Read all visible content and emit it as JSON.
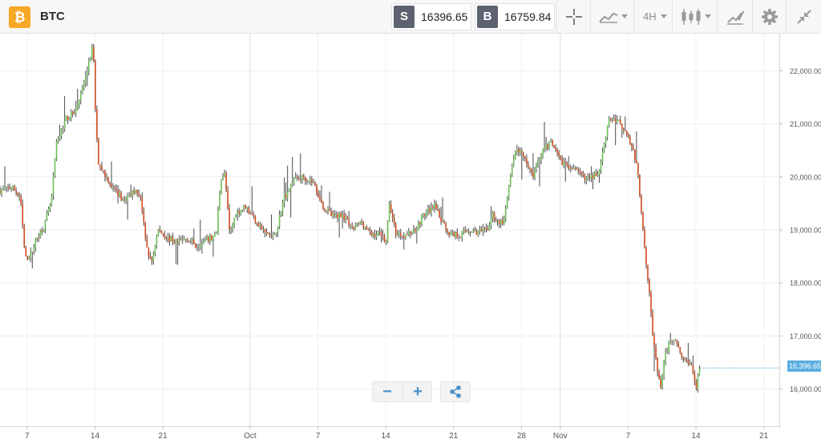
{
  "header": {
    "logo_glyph": "₿",
    "symbol": "BTC",
    "sell": {
      "tag": "S",
      "price": "16396.65"
    },
    "buy": {
      "tag": "B",
      "price": "16759.84"
    },
    "timeframe": "4H",
    "icons": [
      "crosshair-icon",
      "chart-type-icon",
      "candles-icon",
      "drawing-icon",
      "gear-icon",
      "collapse-icon"
    ]
  },
  "zoom_controls": {
    "minus": "−",
    "plus": "+",
    "share_icon": "share-icon"
  },
  "chart_data": {
    "type": "candlestick",
    "instrument": "BTC",
    "interval": "4H",
    "up_color": "#6cbf57",
    "down_color": "#cf4a1e",
    "wick_color": "#4a4a4a",
    "current_price": 16396.65,
    "current_price_label": "16,396.65",
    "ylim": [
      15300,
      22700
    ],
    "y_ticks": [
      16000,
      17000,
      18000,
      19000,
      20000,
      21000,
      22000
    ],
    "y_tick_labels": [
      "16,000.00",
      "17,000.00",
      "18,000.00",
      "19,000.00",
      "20,000.00",
      "21,000.00",
      "22,000.00"
    ],
    "x_ticks": [
      {
        "t": 7,
        "label": "7"
      },
      {
        "t": 14,
        "label": "14"
      },
      {
        "t": 21,
        "label": "21"
      },
      {
        "t": 30,
        "label": "Oct"
      },
      {
        "t": 37,
        "label": "7"
      },
      {
        "t": 44,
        "label": "14"
      },
      {
        "t": 51,
        "label": "21"
      },
      {
        "t": 58,
        "label": "28"
      },
      {
        "t": 62,
        "label": "Nov"
      },
      {
        "t": 69,
        "label": "7"
      },
      {
        "t": 76,
        "label": "14"
      },
      {
        "t": 83,
        "label": "21"
      }
    ],
    "x_range": [
      4.2,
      84.6
    ],
    "month_markers": [
      30,
      62
    ],
    "bars_per_day": 6,
    "path": [
      [
        4.2,
        19750
      ],
      [
        5.5,
        19800
      ],
      [
        6.3,
        19600
      ],
      [
        6.8,
        18450
      ],
      [
        7.4,
        18550
      ],
      [
        8,
        18850
      ],
      [
        8.8,
        19100
      ],
      [
        9.5,
        19550
      ],
      [
        10,
        20600
      ],
      [
        11,
        21100
      ],
      [
        12,
        21250
      ],
      [
        12.6,
        21600
      ],
      [
        13.2,
        22000
      ],
      [
        13.8,
        22500
      ],
      [
        14,
        21400
      ],
      [
        14.3,
        20300
      ],
      [
        15,
        20050
      ],
      [
        16,
        19750
      ],
      [
        17,
        19550
      ],
      [
        18,
        19750
      ],
      [
        18.7,
        19650
      ],
      [
        19.2,
        18800
      ],
      [
        19.8,
        18350
      ],
      [
        20.5,
        19000
      ],
      [
        21.5,
        18850
      ],
      [
        22.5,
        18750
      ],
      [
        23.5,
        18850
      ],
      [
        24.5,
        18700
      ],
      [
        25.5,
        18800
      ],
      [
        26.5,
        18900
      ],
      [
        27,
        20000
      ],
      [
        27.4,
        20050
      ],
      [
        27.9,
        18900
      ],
      [
        28.5,
        19300
      ],
      [
        29.5,
        19450
      ],
      [
        30.5,
        19200
      ],
      [
        31.5,
        18950
      ],
      [
        32.5,
        18850
      ],
      [
        33.5,
        19600
      ],
      [
        34.5,
        19950
      ],
      [
        35.5,
        20000
      ],
      [
        36.5,
        19900
      ],
      [
        37.5,
        19450
      ],
      [
        38.5,
        19250
      ],
      [
        39.5,
        19300
      ],
      [
        40.5,
        19000
      ],
      [
        41.5,
        19150
      ],
      [
        42.5,
        18900
      ],
      [
        43.5,
        18950
      ],
      [
        44,
        18750
      ],
      [
        44.4,
        19500
      ],
      [
        45,
        18950
      ],
      [
        46,
        18900
      ],
      [
        47,
        19000
      ],
      [
        48,
        19300
      ],
      [
        49,
        19450
      ],
      [
        49.8,
        19150
      ],
      [
        50.5,
        18950
      ],
      [
        51.5,
        18900
      ],
      [
        52.5,
        19000
      ],
      [
        53.5,
        18950
      ],
      [
        54.5,
        19000
      ],
      [
        55,
        19300
      ],
      [
        55.5,
        19150
      ],
      [
        56.2,
        19150
      ],
      [
        56.8,
        19950
      ],
      [
        57.5,
        20550
      ],
      [
        58.4,
        20300
      ],
      [
        59.2,
        20050
      ],
      [
        60,
        20450
      ],
      [
        61,
        20650
      ],
      [
        62,
        20300
      ],
      [
        63,
        20200
      ],
      [
        64,
        20050
      ],
      [
        65,
        19950
      ],
      [
        66,
        20100
      ],
      [
        67,
        21100
      ],
      [
        68,
        21050
      ],
      [
        69,
        20800
      ],
      [
        69.5,
        20500
      ],
      [
        70,
        20100
      ],
      [
        70.3,
        19500
      ],
      [
        70.7,
        18700
      ],
      [
        71.2,
        17800
      ],
      [
        71.6,
        16900
      ],
      [
        72,
        16350
      ],
      [
        72.4,
        16050
      ],
      [
        72.8,
        16600
      ],
      [
        73.3,
        16950
      ],
      [
        73.8,
        16950
      ],
      [
        74.5,
        16650
      ],
      [
        75,
        16500
      ],
      [
        75.5,
        16500
      ],
      [
        76,
        16000
      ],
      [
        76.4,
        16396.65
      ]
    ]
  }
}
